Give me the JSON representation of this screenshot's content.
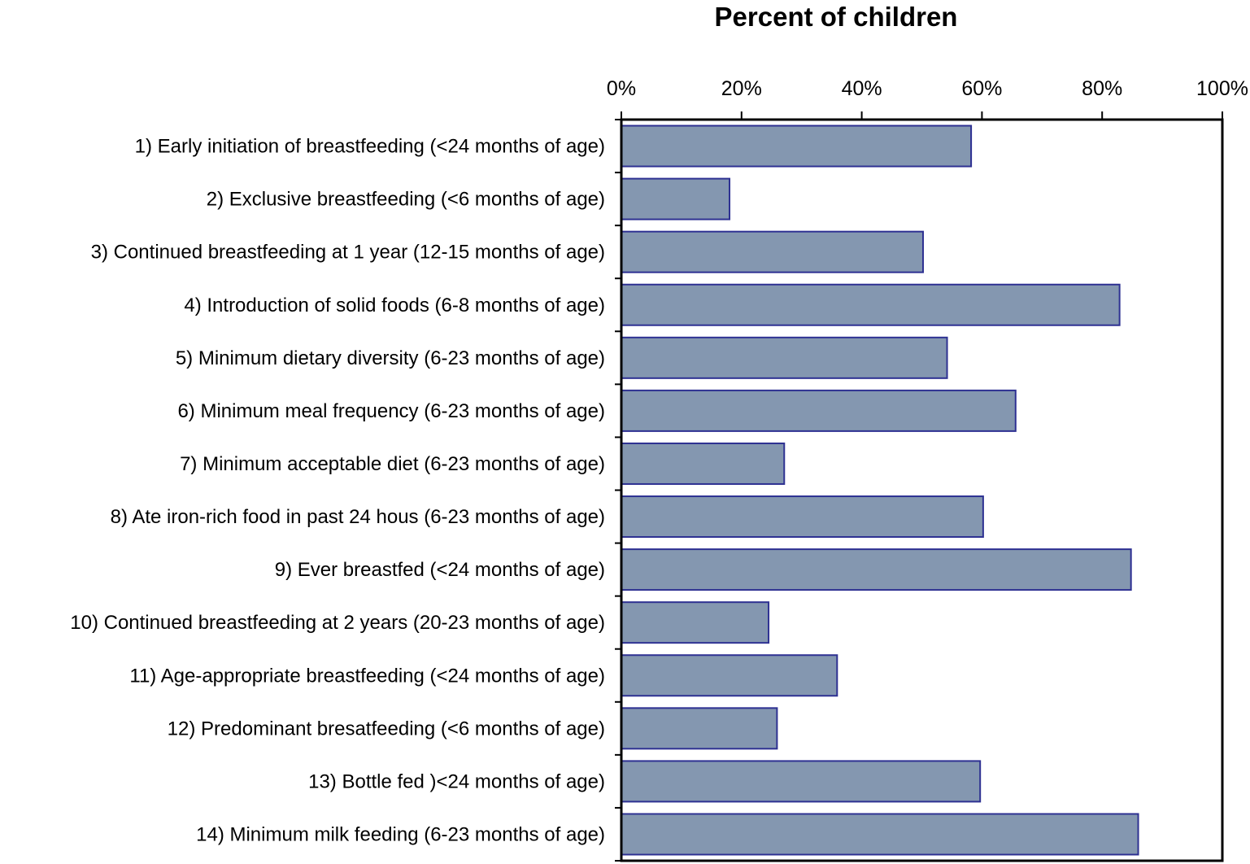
{
  "chart_data": {
    "type": "bar",
    "orientation": "horizontal",
    "title": "Percent of children",
    "xlabel": "Percent of children",
    "ylabel": "",
    "xlim": [
      0,
      100
    ],
    "ticks": [
      {
        "value": 0,
        "label": "0%"
      },
      {
        "value": 20,
        "label": "20%"
      },
      {
        "value": 40,
        "label": "40%"
      },
      {
        "value": 60,
        "label": "60%"
      },
      {
        "value": 80,
        "label": "80%"
      },
      {
        "value": 100,
        "label": "100%"
      }
    ],
    "axis_position": "top",
    "grid": false,
    "bar_color": "#8497b0",
    "bar_edge_color": "#2e3192",
    "categories": [
      "1) Early initiation of breastfeeding (<24 months of age)",
      "2) Exclusive breastfeeding (<6 months of age)",
      "3) Continued breastfeeding at 1 year (12-15 months of age)",
      "4) Introduction of solid foods (6-8 months of age)",
      "5) Minimum dietary diversity (6-23 months of age)",
      "6) Minimum meal frequency (6-23 months of age)",
      "7) Minimum acceptable diet (6-23 months of age)",
      "8) Ate iron-rich food in past 24 hous (6-23 months of age)",
      "9) Ever breastfed (<24 months of age)",
      "10) Continued breastfeeding at 2 years (20-23 months of age)",
      "11) Age-appropriate breastfeeding (<24 months of age)",
      "12) Predominant bresatfeeding (<6 months of age)",
      "13) Bottle fed )<24 months of age)",
      "14) Minimum milk feeding (6-23 months of age)"
    ],
    "values": [
      58.2,
      18.0,
      50.2,
      82.9,
      54.2,
      65.6,
      27.1,
      60.2,
      84.8,
      24.5,
      35.9,
      25.9,
      59.7,
      86.0
    ]
  }
}
